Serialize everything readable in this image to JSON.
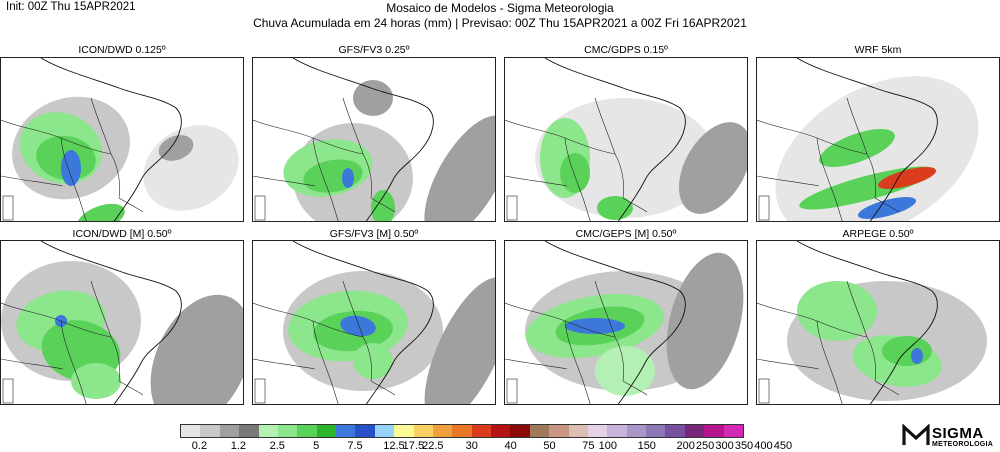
{
  "header": {
    "init": "Init: 00Z Thu 15APR2021",
    "title": "Mosaico de Modelos - Sigma Meteorologia",
    "subtitle": "Chuva Acumulada em 24 horas (mm) | Previsao: 00Z Thu 15APR2021 a 00Z Fri 16APR2021"
  },
  "panels": [
    {
      "title": "ICON/DWD 0.125º"
    },
    {
      "title": "GFS/FV3 0.25º"
    },
    {
      "title": "CMC/GDPS 0.15º"
    },
    {
      "title": "WRF 5km"
    },
    {
      "title": "ICON/DWD [M] 0.50º"
    },
    {
      "title": "GFS/FV3 [M] 0.50º"
    },
    {
      "title": "CMC/GEPS [M] 0.50º"
    },
    {
      "title": "ARPEGE 0.50º"
    }
  ],
  "colorbar": {
    "labels": [
      "0.2",
      "1.2",
      "2.5",
      "5",
      "7.5",
      "12.5",
      "17.5",
      "22.5",
      "30",
      "40",
      "50",
      "75",
      "100",
      "150",
      "200",
      "250",
      "300",
      "350",
      "400",
      "450"
    ],
    "colors": [
      "#e6e6e6",
      "#c8c8c8",
      "#a0a0a0",
      "#787878",
      "#b4f0b4",
      "#8ce68c",
      "#5ad25a",
      "#2db42d",
      "#3c78dc",
      "#2850c8",
      "#96d2fa",
      "#fafa96",
      "#fad264",
      "#f0a03c",
      "#e67828",
      "#dc3c1e",
      "#b41414",
      "#8c0a0a",
      "#a0785a",
      "#c89682",
      "#dcbeb4",
      "#e6d2e6",
      "#c8b4dc",
      "#aa96c8",
      "#8c78b4",
      "#7850a0",
      "#782878",
      "#b4148c",
      "#d228b4"
    ],
    "label_ticks": [
      1,
      3,
      5,
      7,
      9,
      11,
      12,
      13,
      15,
      17,
      19,
      21,
      22,
      24,
      26,
      27,
      28,
      29,
      30,
      31
    ]
  },
  "logo": {
    "name": "SIGMA",
    "sub": "METEOROLOGIA"
  }
}
